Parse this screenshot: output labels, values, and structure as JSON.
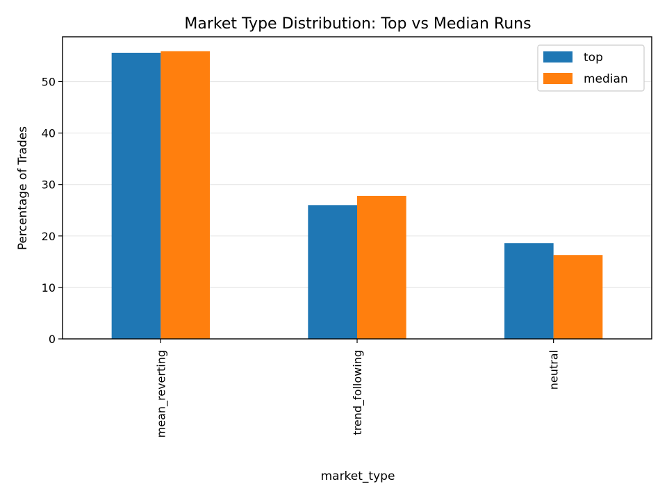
{
  "chart_data": {
    "type": "bar",
    "title": "Market Type Distribution: Top vs Median Runs",
    "xlabel": "market_type",
    "ylabel": "Percentage of Trades",
    "categories": [
      "mean_reverting",
      "trend_following",
      "neutral"
    ],
    "series": [
      {
        "name": "top",
        "color": "#1f77b4",
        "values": [
          55.6,
          26.0,
          18.6
        ]
      },
      {
        "name": "median",
        "color": "#ff7f0e",
        "values": [
          55.9,
          27.8,
          16.3
        ]
      }
    ],
    "ylim": [
      0,
      58.7
    ],
    "yticks": [
      0,
      10,
      20,
      30,
      40,
      50
    ],
    "grid": "y",
    "legend": "upper-right"
  }
}
